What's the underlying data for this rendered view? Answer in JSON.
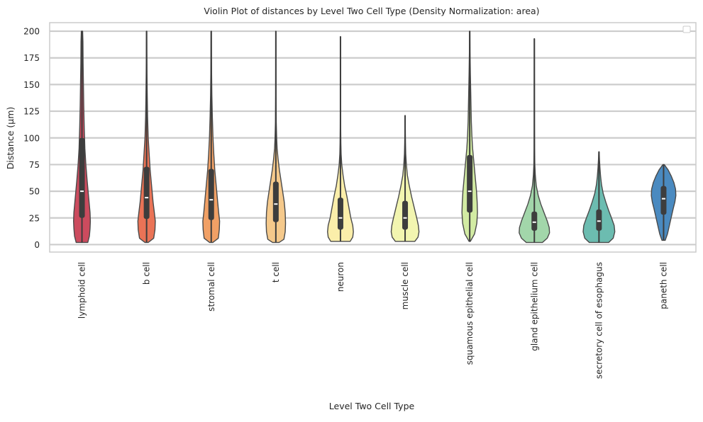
{
  "chart_data": {
    "type": "violin",
    "title": "Violin Plot of distances by Level Two Cell Type (Density Normalization: area)",
    "xlabel": "Level Two Cell Type",
    "ylabel": "Distance (µm)",
    "ylim": [
      -7,
      208
    ],
    "yticks": [
      0,
      25,
      50,
      75,
      100,
      125,
      150,
      175,
      200
    ],
    "grid": "horizontal",
    "legend": "empty, top-right",
    "categories": [
      "lymphoid cell",
      "b cell",
      "stromal cell",
      "t cell",
      "neuron",
      "muscle cell",
      "squamous epithelial cell",
      "gland epithelium cell",
      "secretory cell of esophagus",
      "paneth cell"
    ],
    "colors": [
      "#cc4b5e",
      "#ea7356",
      "#f1a065",
      "#f5c98b",
      "#fbeeaa",
      "#f2f5b0",
      "#d2eba3",
      "#a2d6aa",
      "#6cbcb0",
      "#4a8ac0"
    ],
    "violins": [
      {
        "min": 2,
        "max": 200,
        "q1": 25,
        "median": 50,
        "q3": 100,
        "profile": [
          [
            2,
            0.18
          ],
          [
            8,
            0.23
          ],
          [
            15,
            0.25
          ],
          [
            22,
            0.26
          ],
          [
            30,
            0.25
          ],
          [
            40,
            0.22
          ],
          [
            50,
            0.19
          ],
          [
            60,
            0.16
          ],
          [
            75,
            0.12
          ],
          [
            90,
            0.09
          ],
          [
            110,
            0.07
          ],
          [
            130,
            0.055
          ],
          [
            150,
            0.045
          ],
          [
            170,
            0.035
          ],
          [
            190,
            0.03
          ],
          [
            200,
            0.02
          ]
        ]
      },
      {
        "min": 2,
        "max": 200,
        "q1": 24,
        "median": 44,
        "q3": 73,
        "profile": [
          [
            2,
            0.05
          ],
          [
            6,
            0.22
          ],
          [
            14,
            0.26
          ],
          [
            22,
            0.27
          ],
          [
            30,
            0.24
          ],
          [
            40,
            0.2
          ],
          [
            50,
            0.17
          ],
          [
            60,
            0.14
          ],
          [
            70,
            0.11
          ],
          [
            85,
            0.08
          ],
          [
            100,
            0.05
          ],
          [
            120,
            0.03
          ],
          [
            140,
            0.02
          ],
          [
            160,
            0.012
          ],
          [
            180,
            0.008
          ],
          [
            200,
            0.005
          ]
        ]
      },
      {
        "min": 2,
        "max": 200,
        "q1": 23,
        "median": 42,
        "q3": 71,
        "profile": [
          [
            2,
            0.05
          ],
          [
            6,
            0.22
          ],
          [
            14,
            0.25
          ],
          [
            22,
            0.26
          ],
          [
            30,
            0.23
          ],
          [
            40,
            0.2
          ],
          [
            50,
            0.17
          ],
          [
            60,
            0.14
          ],
          [
            70,
            0.11
          ],
          [
            85,
            0.08
          ],
          [
            100,
            0.055
          ],
          [
            120,
            0.035
          ],
          [
            140,
            0.02
          ],
          [
            160,
            0.012
          ],
          [
            180,
            0.008
          ],
          [
            200,
            0.005
          ]
        ]
      },
      {
        "min": 2,
        "max": 200,
        "q1": 21,
        "median": 38,
        "q3": 59,
        "profile": [
          [
            2,
            0.1
          ],
          [
            5,
            0.25
          ],
          [
            12,
            0.29
          ],
          [
            20,
            0.3
          ],
          [
            30,
            0.29
          ],
          [
            40,
            0.26
          ],
          [
            50,
            0.21
          ],
          [
            60,
            0.16
          ],
          [
            70,
            0.11
          ],
          [
            80,
            0.07
          ],
          [
            90,
            0.04
          ],
          [
            100,
            0.025
          ],
          [
            115,
            0.012
          ],
          [
            140,
            0.006
          ],
          [
            170,
            0.004
          ],
          [
            200,
            0.003
          ]
        ]
      },
      {
        "min": 3,
        "max": 195,
        "q1": 14,
        "median": 25,
        "q3": 44,
        "profile": [
          [
            3,
            0.3
          ],
          [
            7,
            0.38
          ],
          [
            12,
            0.4
          ],
          [
            18,
            0.38
          ],
          [
            25,
            0.32
          ],
          [
            35,
            0.26
          ],
          [
            45,
            0.2
          ],
          [
            55,
            0.13
          ],
          [
            65,
            0.08
          ],
          [
            75,
            0.04
          ],
          [
            85,
            0.02
          ],
          [
            95,
            0.012
          ],
          [
            110,
            0.007
          ],
          [
            140,
            0.004
          ],
          [
            170,
            0.003
          ],
          [
            195,
            0.002
          ]
        ]
      },
      {
        "min": 3,
        "max": 121,
        "q1": 14,
        "median": 25,
        "q3": 41,
        "profile": [
          [
            3,
            0.3
          ],
          [
            7,
            0.4
          ],
          [
            12,
            0.43
          ],
          [
            18,
            0.41
          ],
          [
            25,
            0.36
          ],
          [
            35,
            0.28
          ],
          [
            45,
            0.2
          ],
          [
            55,
            0.13
          ],
          [
            65,
            0.07
          ],
          [
            75,
            0.04
          ],
          [
            85,
            0.02
          ],
          [
            95,
            0.012
          ],
          [
            105,
            0.007
          ],
          [
            121,
            0.003
          ]
        ]
      },
      {
        "min": 3,
        "max": 200,
        "q1": 30,
        "median": 50,
        "q3": 84,
        "profile": [
          [
            3,
            0.02
          ],
          [
            10,
            0.15
          ],
          [
            20,
            0.22
          ],
          [
            30,
            0.24
          ],
          [
            40,
            0.23
          ],
          [
            50,
            0.21
          ],
          [
            60,
            0.18
          ],
          [
            70,
            0.15
          ],
          [
            80,
            0.12
          ],
          [
            90,
            0.09
          ],
          [
            100,
            0.07
          ],
          [
            115,
            0.05
          ],
          [
            130,
            0.04
          ],
          [
            145,
            0.03
          ],
          [
            160,
            0.02
          ],
          [
            180,
            0.01
          ],
          [
            200,
            0.005
          ]
        ]
      },
      {
        "min": 2,
        "max": 193,
        "q1": 13,
        "median": 21,
        "q3": 31,
        "profile": [
          [
            2,
            0.25
          ],
          [
            6,
            0.4
          ],
          [
            11,
            0.47
          ],
          [
            16,
            0.46
          ],
          [
            22,
            0.4
          ],
          [
            30,
            0.3
          ],
          [
            38,
            0.2
          ],
          [
            46,
            0.12
          ],
          [
            55,
            0.06
          ],
          [
            65,
            0.03
          ],
          [
            75,
            0.015
          ],
          [
            90,
            0.008
          ],
          [
            110,
            0.005
          ],
          [
            150,
            0.004
          ],
          [
            193,
            0.003
          ]
        ]
      },
      {
        "min": 2,
        "max": 87,
        "q1": 13,
        "median": 22,
        "q3": 33,
        "profile": [
          [
            2,
            0.3
          ],
          [
            6,
            0.44
          ],
          [
            12,
            0.49
          ],
          [
            18,
            0.47
          ],
          [
            24,
            0.4
          ],
          [
            32,
            0.3
          ],
          [
            40,
            0.21
          ],
          [
            48,
            0.13
          ],
          [
            56,
            0.08
          ],
          [
            64,
            0.05
          ],
          [
            72,
            0.03
          ],
          [
            80,
            0.015
          ],
          [
            87,
            0.006
          ]
        ]
      },
      {
        "min": 4,
        "max": 75,
        "q1": 28,
        "median": 43,
        "q3": 55,
        "profile": [
          [
            4,
            0.05
          ],
          [
            10,
            0.12
          ],
          [
            18,
            0.18
          ],
          [
            26,
            0.24
          ],
          [
            34,
            0.3
          ],
          [
            40,
            0.35
          ],
          [
            46,
            0.38
          ],
          [
            52,
            0.37
          ],
          [
            58,
            0.32
          ],
          [
            64,
            0.24
          ],
          [
            70,
            0.14
          ],
          [
            75,
            0.02
          ]
        ]
      }
    ]
  }
}
